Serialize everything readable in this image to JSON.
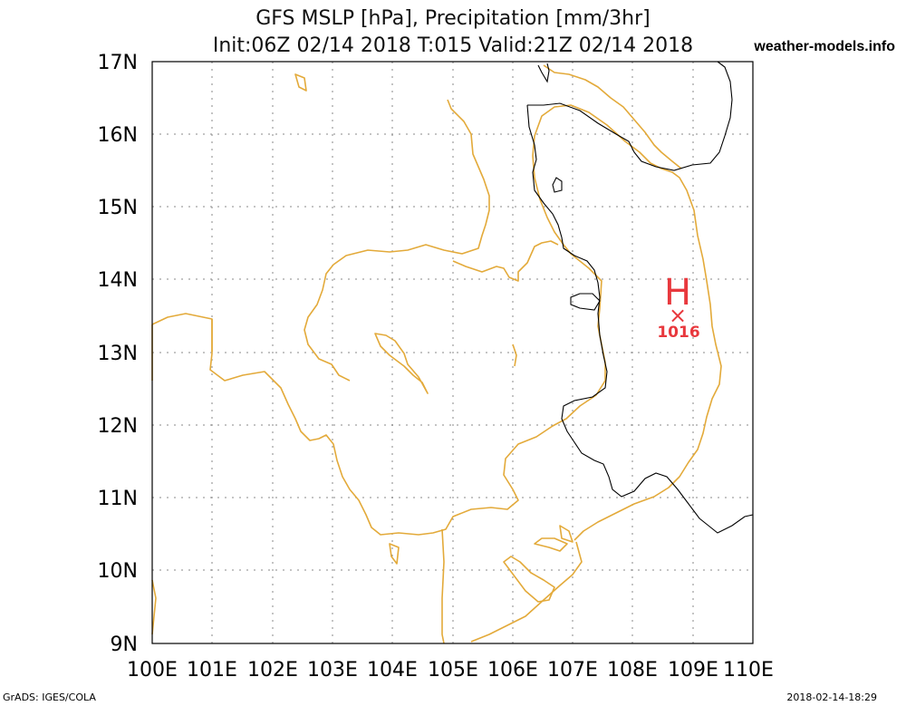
{
  "header": {
    "title_line1": "GFS MSLP [hPa], Precipitation [mm/3hr]",
    "title_line2": "Init:06Z 02/14 2018 T:015 Valid:21Z 02/14 2018",
    "site": "weather-models.info"
  },
  "footer": {
    "left": "GrADS: IGES/COLA",
    "right": "2018-02-14-18:29"
  },
  "axes": {
    "lon_labels": [
      "100E",
      "101E",
      "102E",
      "103E",
      "104E",
      "105E",
      "106E",
      "107E",
      "108E",
      "109E",
      "110E"
    ],
    "lat_labels": [
      "17N",
      "16N",
      "15N",
      "14N",
      "13N",
      "12N",
      "11N",
      "10N",
      "9N"
    ]
  },
  "pressure_center": {
    "type_label": "H",
    "marker": "×",
    "value": "1016",
    "lon": 108.7,
    "lat": 13.55
  },
  "colors": {
    "coastline": "#e3aa3a",
    "isobar": "#000000",
    "high_pressure": "#e8383d",
    "grid": "#888888"
  }
}
